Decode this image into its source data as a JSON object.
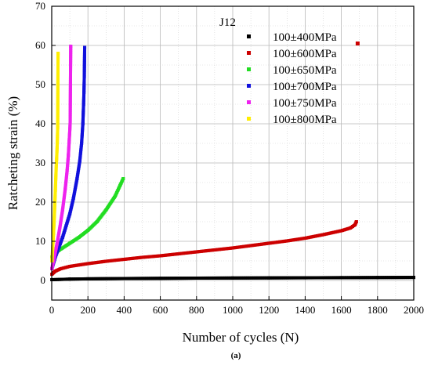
{
  "chart_data": {
    "type": "scatter",
    "xlabel": "Number of cycles (N)",
    "ylabel": "Ratcheting strain (%)",
    "xlim": [
      0,
      2000
    ],
    "ylim": [
      -5,
      70
    ],
    "xticks": [
      0,
      200,
      400,
      600,
      800,
      1000,
      1200,
      1400,
      1600,
      1800,
      2000
    ],
    "yticks": [
      0,
      10,
      20,
      30,
      40,
      50,
      60,
      70
    ],
    "grid": true,
    "legend_position": "top-right",
    "legend_title": "J12",
    "caption": "(a)",
    "series": [
      {
        "name": "100±400MPa",
        "color": "#000000",
        "points": [
          [
            1,
            0.2
          ],
          [
            100,
            0.35
          ],
          [
            200,
            0.42
          ],
          [
            400,
            0.5
          ],
          [
            600,
            0.55
          ],
          [
            800,
            0.6
          ],
          [
            1000,
            0.63
          ],
          [
            1200,
            0.66
          ],
          [
            1400,
            0.69
          ],
          [
            1600,
            0.72
          ],
          [
            1800,
            0.75
          ],
          [
            2000,
            0.78
          ]
        ]
      },
      {
        "name": "100±600MPa",
        "color": "#cc0000",
        "points": [
          [
            1,
            1.6
          ],
          [
            20,
            2.4
          ],
          [
            50,
            3.0
          ],
          [
            100,
            3.6
          ],
          [
            200,
            4.3
          ],
          [
            300,
            4.9
          ],
          [
            400,
            5.4
          ],
          [
            500,
            5.9
          ],
          [
            600,
            6.3
          ],
          [
            700,
            6.8
          ],
          [
            800,
            7.3
          ],
          [
            900,
            7.8
          ],
          [
            1000,
            8.3
          ],
          [
            1100,
            8.9
          ],
          [
            1200,
            9.5
          ],
          [
            1300,
            10.1
          ],
          [
            1400,
            10.8
          ],
          [
            1500,
            11.7
          ],
          [
            1600,
            12.7
          ],
          [
            1650,
            13.4
          ],
          [
            1675,
            14.2
          ],
          [
            1683,
            15.0
          ]
        ],
        "outlier": [
          1690,
          60.5
        ]
      },
      {
        "name": "100±650MPa",
        "color": "#22dd22",
        "points": [
          [
            1,
            6.0
          ],
          [
            20,
            7.0
          ],
          [
            50,
            8.0
          ],
          [
            100,
            9.5
          ],
          [
            150,
            11.0
          ],
          [
            200,
            12.8
          ],
          [
            250,
            15.0
          ],
          [
            300,
            18.0
          ],
          [
            350,
            21.5
          ],
          [
            380,
            24.5
          ],
          [
            395,
            26.0
          ]
        ]
      },
      {
        "name": "100±700MPa",
        "color": "#1111dd",
        "points": [
          [
            1,
            3.0
          ],
          [
            20,
            6.0
          ],
          [
            40,
            8.5
          ],
          [
            60,
            11.0
          ],
          [
            80,
            14.0
          ],
          [
            100,
            17.0
          ],
          [
            120,
            21.0
          ],
          [
            140,
            26.0
          ],
          [
            155,
            30.5
          ],
          [
            165,
            35.0
          ],
          [
            172,
            40.0
          ],
          [
            176,
            45.0
          ],
          [
            178,
            48.0
          ],
          [
            180,
            52.0
          ],
          [
            182,
            59.5
          ]
        ]
      },
      {
        "name": "100±750MPa",
        "color": "#ee22ee",
        "points": [
          [
            1,
            3.0
          ],
          [
            15,
            6.0
          ],
          [
            30,
            9.5
          ],
          [
            45,
            13.5
          ],
          [
            60,
            18.0
          ],
          [
            75,
            23.5
          ],
          [
            85,
            28.0
          ],
          [
            92,
            32.0
          ],
          [
            97,
            36.0
          ],
          [
            100,
            38.5
          ],
          [
            102,
            40.5
          ],
          [
            105,
            59.8
          ]
        ]
      },
      {
        "name": "100±800MPa",
        "color": "#ffee00",
        "points": [
          [
            1,
            5.0
          ],
          [
            5,
            8.0
          ],
          [
            10,
            12.0
          ],
          [
            15,
            17.0
          ],
          [
            20,
            23.0
          ],
          [
            24,
            28.0
          ],
          [
            27,
            31.0
          ],
          [
            30,
            34.0
          ],
          [
            33,
            39.0
          ],
          [
            35,
            58.0
          ]
        ]
      }
    ]
  }
}
